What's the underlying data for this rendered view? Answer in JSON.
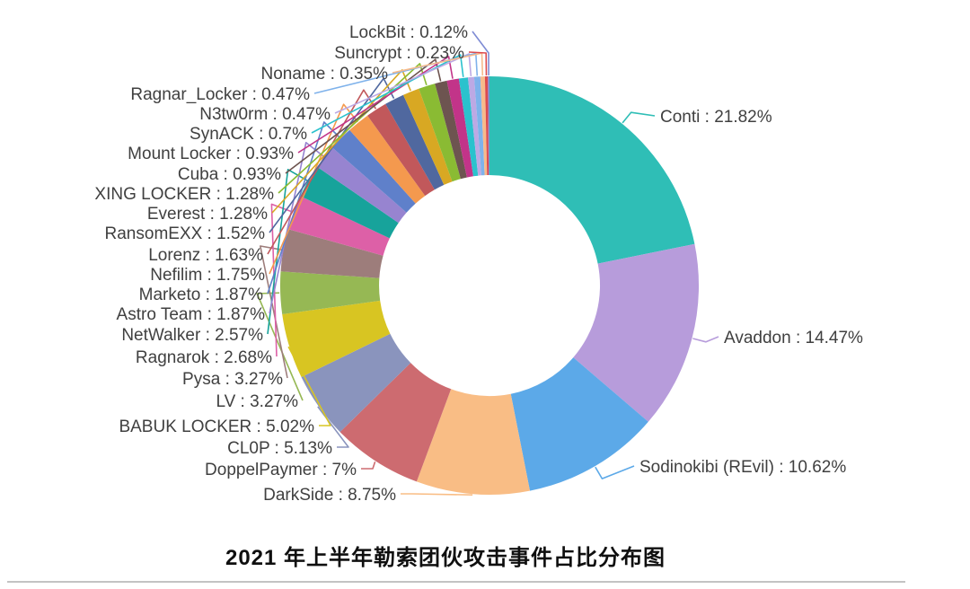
{
  "style": {
    "background": "#ffffff",
    "label_color": "#404040",
    "title_color": "#0f0f0f",
    "divider_color": "#c3c3c3"
  },
  "chart_data": {
    "type": "pie",
    "subtype": "donut",
    "direction": "clockwise",
    "start_angle_deg": 0,
    "value_unit": "percent",
    "title": "2021 年上半年勒索团伙攻击事件占比分布图",
    "legend_position": "callout-labels",
    "segments": [
      {
        "name": "Conti",
        "value": 21.82,
        "label": "Conti : 21.82%",
        "color": "#2fbeb6"
      },
      {
        "name": "Avaddon",
        "value": 14.47,
        "label": "Avaddon : 14.47%",
        "color": "#b79cdb"
      },
      {
        "name": "Sodinokibi (REvil)",
        "value": 10.62,
        "label": "Sodinokibi (REvil) : 10.62%",
        "color": "#5ca9e8"
      },
      {
        "name": "DarkSide",
        "value": 8.75,
        "label": "DarkSide : 8.75%",
        "color": "#f9bd85"
      },
      {
        "name": "DoppelPaymer",
        "value": 7,
        "label": "DoppelPaymer : 7%",
        "color": "#cd6b70"
      },
      {
        "name": "CL0P",
        "value": 5.13,
        "label": "CL0P : 5.13%",
        "color": "#8a94bd"
      },
      {
        "name": "BABUK LOCKER",
        "value": 5.02,
        "label": "BABUK LOCKER : 5.02%",
        "color": "#d8c522"
      },
      {
        "name": "LV",
        "value": 3.27,
        "label": "LV : 3.27%",
        "color": "#96b854"
      },
      {
        "name": "Pysa",
        "value": 3.27,
        "label": "Pysa : 3.27%",
        "color": "#9d7d7b"
      },
      {
        "name": "Ragnarok",
        "value": 2.68,
        "label": "Ragnarok : 2.68%",
        "color": "#dd60a7"
      },
      {
        "name": "NetWalker",
        "value": 2.57,
        "label": "NetWalker : 2.57%",
        "color": "#17a39b"
      },
      {
        "name": "Astro Team",
        "value": 1.87,
        "label": "Astro Team : 1.87%",
        "color": "#9784d0"
      },
      {
        "name": "Marketo",
        "value": 1.87,
        "label": "Marketo : 1.87%",
        "color": "#5f80ca"
      },
      {
        "name": "Nefilim",
        "value": 1.75,
        "label": "Nefilim : 1.75%",
        "color": "#f4994e"
      },
      {
        "name": "Lorenz",
        "value": 1.63,
        "label": "Lorenz : 1.63%",
        "color": "#c1585b"
      },
      {
        "name": "RansomEXX",
        "value": 1.52,
        "label": "RansomEXX : 1.52%",
        "color": "#50689f"
      },
      {
        "name": "Everest",
        "value": 1.28,
        "label": "Everest : 1.28%",
        "color": "#d8a823"
      },
      {
        "name": "XING LOCKER",
        "value": 1.28,
        "label": "XING LOCKER : 1.28%",
        "color": "#8abb33"
      },
      {
        "name": "Cuba",
        "value": 0.93,
        "label": "Cuba : 0.93%",
        "color": "#6d5450"
      },
      {
        "name": "Mount Locker",
        "value": 0.93,
        "label": "Mount Locker : 0.93%",
        "color": "#c23489"
      },
      {
        "name": "SynACK",
        "value": 0.7,
        "label": "SynACK : 0.7%",
        "color": "#2bc2cd"
      },
      {
        "name": "N3tw0rm",
        "value": 0.47,
        "label": "N3tw0rm : 0.47%",
        "color": "#bca9e4"
      },
      {
        "name": "Ragnar_Locker",
        "value": 0.47,
        "label": "Ragnar_Locker : 0.47%",
        "color": "#7fb2eb"
      },
      {
        "name": "Noname",
        "value": 0.35,
        "label": "Noname : 0.35%",
        "color": "#f7ba8b"
      },
      {
        "name": "Suncrypt",
        "value": 0.23,
        "label": "Suncrypt : 0.23%",
        "color": "#dc4a4e"
      },
      {
        "name": "LockBit",
        "value": 0.12,
        "label": "LockBit : 0.12%",
        "color": "#7e8bd4"
      }
    ]
  }
}
